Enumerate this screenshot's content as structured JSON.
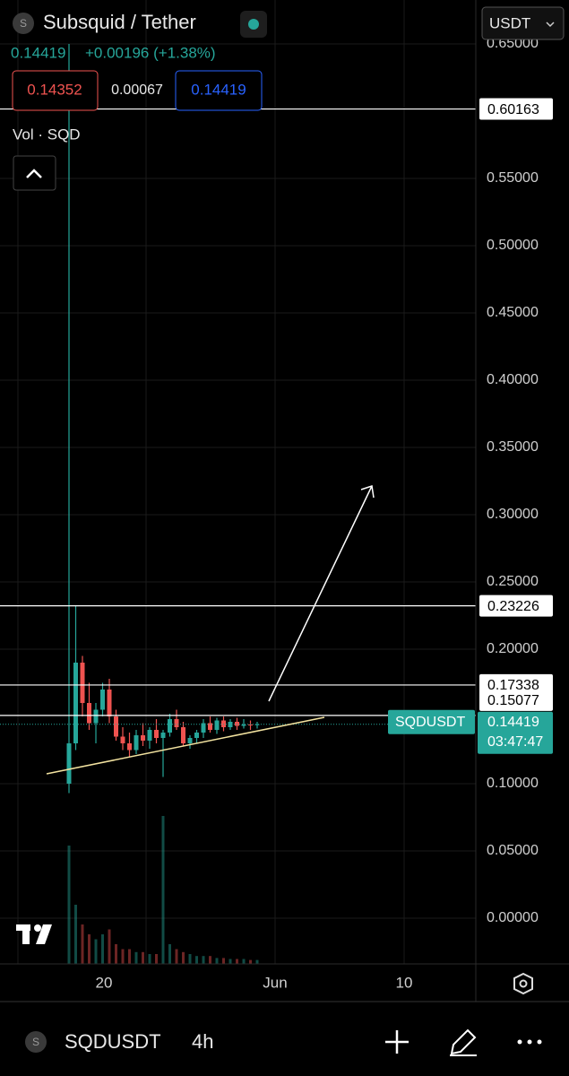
{
  "header": {
    "icon": "S",
    "title": "Subsquid / Tether",
    "currency": "USDT",
    "price": "0.14419",
    "change": "+0.00196 (+1.38%)",
    "bid": "0.14352",
    "spread": "0.00067",
    "ask": "0.14419",
    "volume_label": "Vol · SQD"
  },
  "chart_data": {
    "type": "candlestick",
    "ylim": [
      -0.034,
      0.656
    ],
    "yticks": [
      {
        "value": 0.65,
        "label": "0.65000"
      },
      {
        "value": 0.55,
        "label": "0.55000"
      },
      {
        "value": 0.5,
        "label": "0.50000"
      },
      {
        "value": 0.45,
        "label": "0.45000"
      },
      {
        "value": 0.4,
        "label": "0.40000"
      },
      {
        "value": 0.35,
        "label": "0.35000"
      },
      {
        "value": 0.3,
        "label": "0.30000"
      },
      {
        "value": 0.25,
        "label": "0.25000"
      },
      {
        "value": 0.2,
        "label": "0.20000"
      },
      {
        "value": 0.1,
        "label": "0.10000"
      },
      {
        "value": 0.05,
        "label": "0.05000"
      },
      {
        "value": 0,
        "label": "0.00000"
      }
    ],
    "x_labels": [
      "20",
      "Jun",
      "10"
    ],
    "up_color": "#26a69a",
    "down_color": "#ef5350",
    "candles": [
      [
        0.1,
        0.65,
        0.093,
        0.13
      ],
      [
        0.13,
        0.232,
        0.125,
        0.19
      ],
      [
        0.19,
        0.195,
        0.15,
        0.16
      ],
      [
        0.16,
        0.175,
        0.14,
        0.145
      ],
      [
        0.145,
        0.16,
        0.13,
        0.155
      ],
      [
        0.155,
        0.175,
        0.15,
        0.17
      ],
      [
        0.17,
        0.178,
        0.145,
        0.15
      ],
      [
        0.15,
        0.155,
        0.132,
        0.135
      ],
      [
        0.135,
        0.142,
        0.125,
        0.13
      ],
      [
        0.13,
        0.138,
        0.12,
        0.125
      ],
      [
        0.125,
        0.14,
        0.122,
        0.136
      ],
      [
        0.136,
        0.145,
        0.128,
        0.132
      ],
      [
        0.132,
        0.142,
        0.126,
        0.14
      ],
      [
        0.14,
        0.148,
        0.13,
        0.134
      ],
      [
        0.134,
        0.14,
        0.105,
        0.138
      ],
      [
        0.138,
        0.152,
        0.135,
        0.148
      ],
      [
        0.148,
        0.155,
        0.14,
        0.142
      ],
      [
        0.142,
        0.146,
        0.128,
        0.13
      ],
      [
        0.13,
        0.136,
        0.126,
        0.134
      ],
      [
        0.134,
        0.14,
        0.13,
        0.138
      ],
      [
        0.138,
        0.148,
        0.134,
        0.145
      ],
      [
        0.145,
        0.15,
        0.138,
        0.14
      ],
      [
        0.14,
        0.149,
        0.137,
        0.147
      ],
      [
        0.147,
        0.15,
        0.139,
        0.142
      ],
      [
        0.142,
        0.148,
        0.14,
        0.146
      ],
      [
        0.146,
        0.149,
        0.14,
        0.143
      ],
      [
        0.143,
        0.148,
        0.141,
        0.144
      ],
      [
        0.144,
        0.147,
        0.14,
        0.1435
      ],
      [
        0.1435,
        0.146,
        0.141,
        0.14419
      ]
    ],
    "volumes": [
      120,
      60,
      40,
      30,
      25,
      30,
      35,
      20,
      15,
      15,
      12,
      12,
      10,
      10,
      150,
      20,
      15,
      12,
      10,
      8,
      8,
      8,
      6,
      6,
      5,
      5,
      5,
      4,
      4
    ],
    "levels": [
      0.60163,
      0.23226,
      0.17338,
      0.15077
    ],
    "symbol": "SQDUSDT",
    "last": 0.14419,
    "countdown": "03:47:47"
  },
  "footer": {
    "icon": "S",
    "symbol": "SQDUSDT",
    "interval": "4h"
  }
}
